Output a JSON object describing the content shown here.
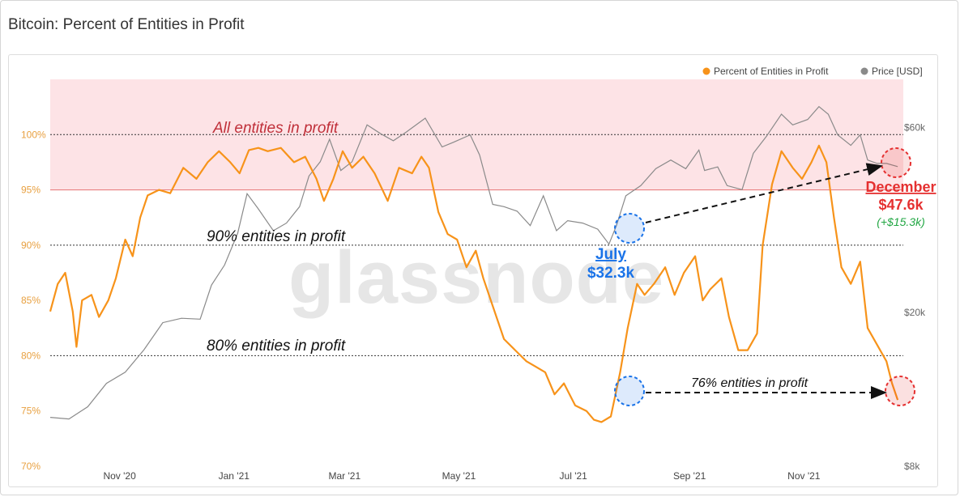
{
  "title": "Bitcoin: Percent of Entities in Profit",
  "watermark": "glassnode",
  "legend": {
    "series1": "Percent of Entities in Profit",
    "series2": "Price [USD]"
  },
  "colors": {
    "percent": "#f7931a",
    "price": "#8a8a8a",
    "band": "#fde3e6",
    "band_line": "#e57373",
    "blue_marker": "#1a73e8",
    "red_marker": "#e53030"
  },
  "annotations": {
    "all_profit": "All entities in profit",
    "ninety": "90% entities in profit",
    "eighty": "80% entities in profit",
    "seventysix": "76% entities in profit",
    "july_label": "July",
    "july_price": "$32.3k",
    "december_label": "December",
    "december_price": "$47.6k",
    "december_change": "(+$15.3k)"
  },
  "chart_data": {
    "type": "line",
    "y_left": {
      "min": 70,
      "max": 105,
      "ticks": [
        70,
        75,
        80,
        85,
        90,
        95,
        100
      ],
      "tick_labels": [
        "70%",
        "75%",
        "80%",
        "85%",
        "90%",
        "95%",
        "100%"
      ]
    },
    "y_right": {
      "scale": "log",
      "min": 8000,
      "max": 80000,
      "ticks": [
        8000,
        20000,
        60000
      ],
      "tick_labels": [
        "$8k",
        "$20k",
        "$60k"
      ]
    },
    "x_ticks": [
      {
        "date": "2020-11-01",
        "label": "Nov '20"
      },
      {
        "date": "2021-01-01",
        "label": "Jan '21"
      },
      {
        "date": "2021-03-01",
        "label": "Mar '21"
      },
      {
        "date": "2021-05-01",
        "label": "May '21"
      },
      {
        "date": "2021-07-01",
        "label": "Jul '21"
      },
      {
        "date": "2021-09-01",
        "label": "Sep '21"
      },
      {
        "date": "2021-11-01",
        "label": "Nov '21"
      }
    ],
    "x_range": [
      "2020-09-25",
      "2021-12-24"
    ],
    "profit_band": [
      95,
      100
    ],
    "reference_lines": [
      100,
      90,
      80
    ],
    "series": [
      {
        "name": "Percent of Entities in Profit",
        "points": [
          [
            "2020-09-25",
            84.0
          ],
          [
            "2020-09-29",
            86.5
          ],
          [
            "2020-10-03",
            87.5
          ],
          [
            "2020-10-07",
            84.0
          ],
          [
            "2020-10-09",
            80.8
          ],
          [
            "2020-10-12",
            85.0
          ],
          [
            "2020-10-17",
            85.5
          ],
          [
            "2020-10-21",
            83.5
          ],
          [
            "2020-10-26",
            85.0
          ],
          [
            "2020-10-30",
            87.0
          ],
          [
            "2020-11-04",
            90.5
          ],
          [
            "2020-11-08",
            89.0
          ],
          [
            "2020-11-12",
            92.5
          ],
          [
            "2020-11-16",
            94.5
          ],
          [
            "2020-11-22",
            95.0
          ],
          [
            "2020-11-28",
            94.7
          ],
          [
            "2020-12-05",
            97.0
          ],
          [
            "2020-12-12",
            96.0
          ],
          [
            "2020-12-18",
            97.5
          ],
          [
            "2020-12-24",
            98.5
          ],
          [
            "2020-12-30",
            97.5
          ],
          [
            "2021-01-04",
            96.5
          ],
          [
            "2021-01-09",
            98.6
          ],
          [
            "2021-01-14",
            98.8
          ],
          [
            "2021-01-19",
            98.5
          ],
          [
            "2021-01-26",
            98.8
          ],
          [
            "2021-02-02",
            97.5
          ],
          [
            "2021-02-08",
            98.0
          ],
          [
            "2021-02-14",
            96.0
          ],
          [
            "2021-02-18",
            94.0
          ],
          [
            "2021-02-23",
            96.0
          ],
          [
            "2021-02-28",
            98.5
          ],
          [
            "2021-03-05",
            97.0
          ],
          [
            "2021-03-11",
            98.0
          ],
          [
            "2021-03-17",
            96.5
          ],
          [
            "2021-03-24",
            94.0
          ],
          [
            "2021-03-30",
            97.0
          ],
          [
            "2021-04-06",
            96.5
          ],
          [
            "2021-04-11",
            98.0
          ],
          [
            "2021-04-15",
            97.0
          ],
          [
            "2021-04-20",
            93.0
          ],
          [
            "2021-04-25",
            91.0
          ],
          [
            "2021-04-30",
            90.5
          ],
          [
            "2021-05-05",
            88.0
          ],
          [
            "2021-05-10",
            89.5
          ],
          [
            "2021-05-14",
            87.0
          ],
          [
            "2021-05-19",
            84.5
          ],
          [
            "2021-05-25",
            81.5
          ],
          [
            "2021-05-31",
            80.5
          ],
          [
            "2021-06-06",
            79.5
          ],
          [
            "2021-06-11",
            79.0
          ],
          [
            "2021-06-16",
            78.5
          ],
          [
            "2021-06-21",
            76.5
          ],
          [
            "2021-06-26",
            77.5
          ],
          [
            "2021-07-02",
            75.5
          ],
          [
            "2021-07-08",
            75.0
          ],
          [
            "2021-07-12",
            74.2
          ],
          [
            "2021-07-16",
            74.0
          ],
          [
            "2021-07-21",
            74.5
          ],
          [
            "2021-07-26",
            78.5
          ],
          [
            "2021-07-30",
            82.5
          ],
          [
            "2021-08-04",
            86.5
          ],
          [
            "2021-08-08",
            85.5
          ],
          [
            "2021-08-13",
            86.5
          ],
          [
            "2021-08-19",
            88.0
          ],
          [
            "2021-08-24",
            85.5
          ],
          [
            "2021-08-29",
            87.5
          ],
          [
            "2021-09-04",
            89.0
          ],
          [
            "2021-09-08",
            85.0
          ],
          [
            "2021-09-12",
            86.0
          ],
          [
            "2021-09-18",
            87.0
          ],
          [
            "2021-09-22",
            83.5
          ],
          [
            "2021-09-27",
            80.5
          ],
          [
            "2021-10-02",
            80.5
          ],
          [
            "2021-10-07",
            82.0
          ],
          [
            "2021-10-10",
            90.0
          ],
          [
            "2021-10-15",
            95.5
          ],
          [
            "2021-10-20",
            98.5
          ],
          [
            "2021-10-26",
            97.0
          ],
          [
            "2021-10-31",
            96.0
          ],
          [
            "2021-11-05",
            97.5
          ],
          [
            "2021-11-09",
            99.0
          ],
          [
            "2021-11-13",
            97.5
          ],
          [
            "2021-11-17",
            92.5
          ],
          [
            "2021-11-21",
            88.0
          ],
          [
            "2021-11-26",
            86.5
          ],
          [
            "2021-12-01",
            88.5
          ],
          [
            "2021-12-05",
            82.5
          ],
          [
            "2021-12-10",
            81.0
          ],
          [
            "2021-12-15",
            79.5
          ],
          [
            "2021-12-18",
            77.5
          ],
          [
            "2021-12-21",
            76.0
          ]
        ]
      },
      {
        "name": "Price [USD]",
        "points": [
          [
            "2020-09-25",
            10700
          ],
          [
            "2020-10-05",
            10600
          ],
          [
            "2020-10-15",
            11400
          ],
          [
            "2020-10-25",
            13100
          ],
          [
            "2020-11-04",
            14000
          ],
          [
            "2020-11-14",
            16000
          ],
          [
            "2020-11-24",
            18800
          ],
          [
            "2020-12-04",
            19300
          ],
          [
            "2020-12-14",
            19200
          ],
          [
            "2020-12-20",
            23500
          ],
          [
            "2020-12-27",
            26500
          ],
          [
            "2021-01-03",
            32000
          ],
          [
            "2021-01-08",
            40500
          ],
          [
            "2021-01-14",
            37000
          ],
          [
            "2021-01-22",
            32500
          ],
          [
            "2021-01-29",
            34000
          ],
          [
            "2021-02-05",
            37500
          ],
          [
            "2021-02-10",
            45000
          ],
          [
            "2021-02-16",
            49000
          ],
          [
            "2021-02-21",
            56000
          ],
          [
            "2021-02-27",
            46500
          ],
          [
            "2021-03-05",
            49000
          ],
          [
            "2021-03-13",
            61000
          ],
          [
            "2021-03-20",
            58000
          ],
          [
            "2021-03-27",
            55500
          ],
          [
            "2021-04-03",
            58500
          ],
          [
            "2021-04-13",
            63500
          ],
          [
            "2021-04-22",
            53500
          ],
          [
            "2021-04-28",
            55000
          ],
          [
            "2021-05-07",
            57500
          ],
          [
            "2021-05-12",
            51000
          ],
          [
            "2021-05-19",
            38000
          ],
          [
            "2021-05-25",
            37500
          ],
          [
            "2021-06-01",
            36500
          ],
          [
            "2021-06-08",
            33500
          ],
          [
            "2021-06-15",
            40000
          ],
          [
            "2021-06-22",
            32500
          ],
          [
            "2021-06-28",
            34500
          ],
          [
            "2021-07-06",
            34000
          ],
          [
            "2021-07-14",
            32800
          ],
          [
            "2021-07-20",
            30000
          ],
          [
            "2021-07-24",
            33500
          ],
          [
            "2021-07-29",
            40000
          ],
          [
            "2021-08-06",
            42500
          ],
          [
            "2021-08-14",
            47000
          ],
          [
            "2021-08-22",
            49500
          ],
          [
            "2021-08-30",
            47000
          ],
          [
            "2021-09-06",
            52500
          ],
          [
            "2021-09-09",
            46500
          ],
          [
            "2021-09-16",
            47500
          ],
          [
            "2021-09-21",
            42500
          ],
          [
            "2021-09-29",
            41500
          ],
          [
            "2021-10-05",
            51500
          ],
          [
            "2021-10-12",
            57000
          ],
          [
            "2021-10-20",
            65000
          ],
          [
            "2021-10-26",
            61000
          ],
          [
            "2021-11-03",
            63000
          ],
          [
            "2021-11-09",
            68000
          ],
          [
            "2021-11-14",
            65000
          ],
          [
            "2021-11-19",
            57500
          ],
          [
            "2021-11-26",
            54000
          ],
          [
            "2021-12-01",
            57500
          ],
          [
            "2021-12-05",
            49500
          ],
          [
            "2021-12-10",
            48500
          ],
          [
            "2021-12-15",
            48500
          ],
          [
            "2021-12-21",
            47600
          ]
        ]
      }
    ]
  }
}
